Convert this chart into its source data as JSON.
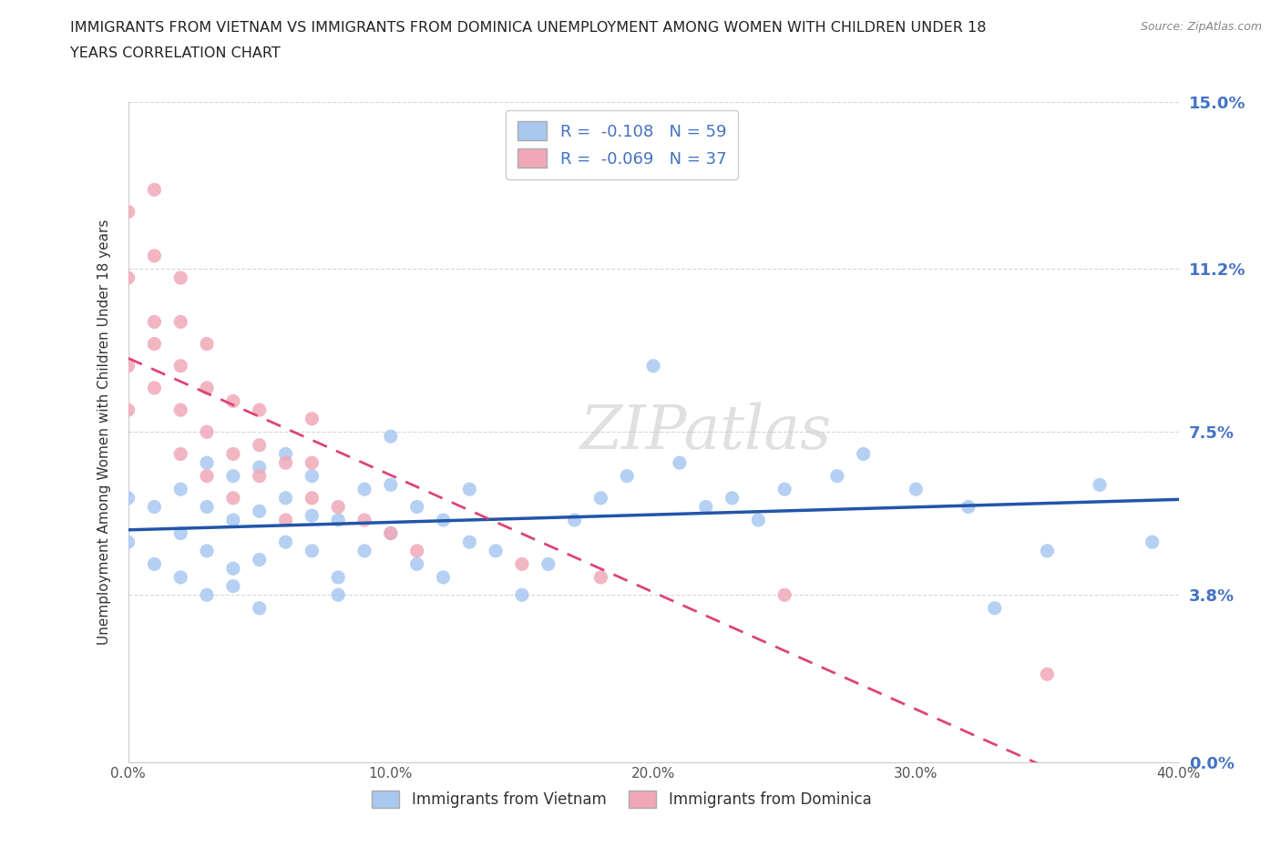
{
  "title_line1": "IMMIGRANTS FROM VIETNAM VS IMMIGRANTS FROM DOMINICA UNEMPLOYMENT AMONG WOMEN WITH CHILDREN UNDER 18",
  "title_line2": "YEARS CORRELATION CHART",
  "source": "Source: ZipAtlas.com",
  "ylabel": "Unemployment Among Women with Children Under 18 years",
  "xlim": [
    0.0,
    0.4
  ],
  "ylim": [
    0.0,
    0.15
  ],
  "yticks": [
    0.0,
    0.038,
    0.075,
    0.112,
    0.15
  ],
  "ytick_labels": [
    "0.0%",
    "3.8%",
    "7.5%",
    "11.2%",
    "15.0%"
  ],
  "xticks": [
    0.0,
    0.1,
    0.2,
    0.3,
    0.4
  ],
  "xtick_labels": [
    "0.0%",
    "10.0%",
    "20.0%",
    "30.0%",
    "40.0%"
  ],
  "vietnam_color": "#A8C8F0",
  "dominica_color": "#F0A8B8",
  "vietnam_line_color": "#2255AA",
  "dominica_line_color": "#DD4477",
  "R_vietnam": -0.108,
  "N_vietnam": 59,
  "R_dominica": -0.069,
  "N_dominica": 37,
  "vietnam_scatter_x": [
    0.0,
    0.0,
    0.01,
    0.01,
    0.02,
    0.02,
    0.02,
    0.03,
    0.03,
    0.03,
    0.03,
    0.04,
    0.04,
    0.04,
    0.04,
    0.05,
    0.05,
    0.05,
    0.05,
    0.06,
    0.06,
    0.06,
    0.07,
    0.07,
    0.07,
    0.08,
    0.08,
    0.08,
    0.09,
    0.09,
    0.1,
    0.1,
    0.1,
    0.11,
    0.11,
    0.12,
    0.12,
    0.13,
    0.13,
    0.14,
    0.15,
    0.16,
    0.17,
    0.18,
    0.19,
    0.2,
    0.21,
    0.22,
    0.23,
    0.24,
    0.25,
    0.27,
    0.28,
    0.3,
    0.32,
    0.33,
    0.35,
    0.37,
    0.39
  ],
  "vietnam_scatter_y": [
    0.05,
    0.06,
    0.045,
    0.058,
    0.052,
    0.062,
    0.042,
    0.048,
    0.058,
    0.068,
    0.038,
    0.044,
    0.055,
    0.065,
    0.04,
    0.046,
    0.057,
    0.067,
    0.035,
    0.05,
    0.06,
    0.07,
    0.048,
    0.056,
    0.065,
    0.042,
    0.055,
    0.038,
    0.048,
    0.062,
    0.052,
    0.063,
    0.074,
    0.045,
    0.058,
    0.042,
    0.055,
    0.05,
    0.062,
    0.048,
    0.038,
    0.045,
    0.055,
    0.06,
    0.065,
    0.09,
    0.068,
    0.058,
    0.06,
    0.055,
    0.062,
    0.065,
    0.07,
    0.062,
    0.058,
    0.035,
    0.048,
    0.063,
    0.05
  ],
  "dominica_scatter_x": [
    0.0,
    0.0,
    0.0,
    0.0,
    0.01,
    0.01,
    0.01,
    0.01,
    0.01,
    0.02,
    0.02,
    0.02,
    0.02,
    0.02,
    0.03,
    0.03,
    0.03,
    0.03,
    0.04,
    0.04,
    0.04,
    0.05,
    0.05,
    0.05,
    0.06,
    0.06,
    0.07,
    0.07,
    0.07,
    0.08,
    0.09,
    0.1,
    0.11,
    0.15,
    0.18,
    0.25,
    0.35
  ],
  "dominica_scatter_y": [
    0.08,
    0.09,
    0.11,
    0.125,
    0.085,
    0.095,
    0.1,
    0.115,
    0.13,
    0.07,
    0.08,
    0.09,
    0.1,
    0.11,
    0.065,
    0.075,
    0.085,
    0.095,
    0.06,
    0.07,
    0.082,
    0.065,
    0.072,
    0.08,
    0.055,
    0.068,
    0.06,
    0.068,
    0.078,
    0.058,
    0.055,
    0.052,
    0.048,
    0.045,
    0.042,
    0.038,
    0.02
  ]
}
